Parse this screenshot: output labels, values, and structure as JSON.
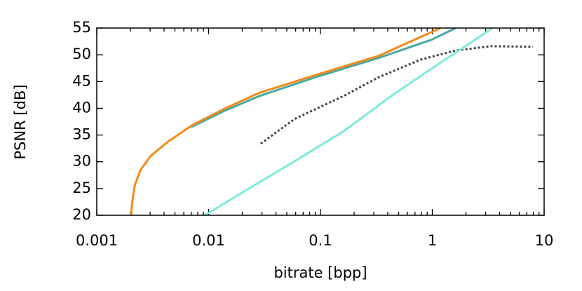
{
  "chart_data": {
    "type": "line",
    "xlabel": "bitrate [bpp]",
    "ylabel": "PSNR [dB]",
    "xscale": "log",
    "xlim": [
      0.001,
      10
    ],
    "xticks": [
      0.001,
      0.01,
      0.1,
      1,
      10
    ],
    "ylim": [
      20,
      55
    ],
    "yticks": [
      20,
      25,
      30,
      35,
      40,
      45,
      50,
      55
    ],
    "series": [
      {
        "color": "#4aa8a0",
        "style": "solid",
        "x": [
          0.007,
          0.0138,
          0.0285,
          0.09,
          0.33,
          0.98,
          1.62
        ],
        "values": [
          36.5,
          39.5,
          42.3,
          45.8,
          49.4,
          52.8,
          55
        ]
      },
      {
        "color": "#f28a17",
        "style": "solid",
        "x": [
          0.00203,
          0.00206,
          0.00218,
          0.00245,
          0.00304,
          0.00436,
          0.00722,
          0.0138,
          0.0285,
          0.0904,
          0.331,
          1.18
        ],
        "values": [
          20,
          22,
          25.5,
          28.4,
          31.1,
          33.8,
          36.9,
          39.9,
          42.9,
          46.2,
          49.8,
          55
        ]
      },
      {
        "color": "#444444",
        "style": "dotted",
        "x": [
          0.0293,
          0.0586,
          0.161,
          0.331,
          0.789,
          1.62,
          3.34,
          7.94
        ],
        "values": [
          33.4,
          38.0,
          42.3,
          45.8,
          49.1,
          50.8,
          51.6,
          51.5
        ]
      },
      {
        "color": "#7eeadb",
        "style": "solid",
        "x": [
          0.00925,
          0.0213,
          0.0586,
          0.161,
          0.443,
          1.05,
          1.88,
          3.44
        ],
        "values": [
          20,
          24.6,
          30.1,
          35.7,
          42.5,
          47.8,
          51.3,
          55
        ]
      }
    ]
  }
}
